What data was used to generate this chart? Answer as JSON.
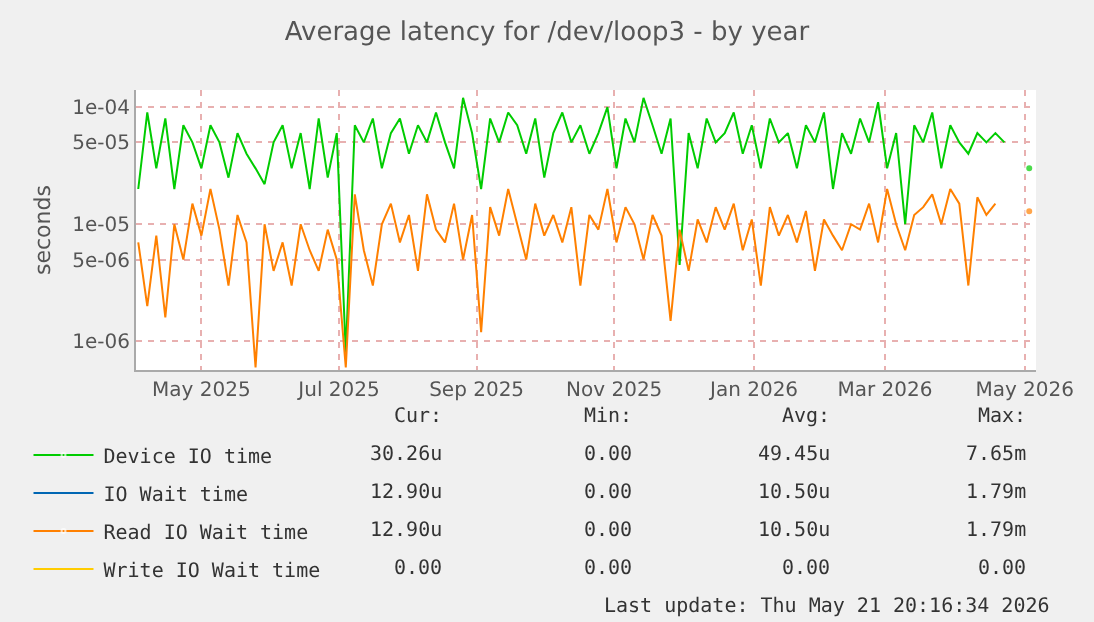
{
  "chart_data": {
    "type": "line",
    "title": "Average latency for /dev/loop3 - by year",
    "ylabel": "seconds",
    "log": true,
    "grid": true,
    "legend": "bottom",
    "marker": "none",
    "line_style": "solid",
    "xlim": [
      "2025-04-17",
      "2026-05-21"
    ],
    "xticks": [
      {
        "value": "2025-05-16",
        "label": "May 2025"
      },
      {
        "value": "2025-07-16",
        "label": "Jul 2025"
      },
      {
        "value": "2025-09-15",
        "label": "Sep 2025"
      },
      {
        "value": "2025-11-15",
        "label": "Nov 2025"
      },
      {
        "value": "2026-01-16",
        "label": "Jan 2026"
      },
      {
        "value": "2026-03-15",
        "label": "Mar 2026"
      },
      {
        "value": "2026-05-16",
        "label": "May 2026"
      }
    ],
    "ylim": [
      5.7e-07,
      0.00014
    ],
    "yticks": [
      {
        "value": 1e-06,
        "label": "1e-06"
      },
      {
        "value": 5e-06,
        "label": "5e-06"
      },
      {
        "value": 1e-05,
        "label": "1e-05"
      },
      {
        "value": 5e-05,
        "label": "5e-05"
      },
      {
        "value": 0.0001,
        "label": "1e-04"
      }
    ],
    "x": [
      "2025-04-18",
      "2025-04-22",
      "2025-04-26",
      "2025-04-30",
      "2025-05-04",
      "2025-05-08",
      "2025-05-12",
      "2025-05-16",
      "2025-05-20",
      "2025-05-24",
      "2025-05-28",
      "2025-06-01",
      "2025-06-05",
      "2025-06-09",
      "2025-06-13",
      "2025-06-17",
      "2025-06-21",
      "2025-06-25",
      "2025-06-29",
      "2025-07-03",
      "2025-07-07",
      "2025-07-11",
      "2025-07-15",
      "2025-07-19",
      "2025-07-23",
      "2025-07-27",
      "2025-07-31",
      "2025-08-04",
      "2025-08-08",
      "2025-08-12",
      "2025-08-16",
      "2025-08-20",
      "2025-08-24",
      "2025-08-28",
      "2025-09-01",
      "2025-09-05",
      "2025-09-09",
      "2025-09-13",
      "2025-09-17",
      "2025-09-21",
      "2025-09-25",
      "2025-09-29",
      "2025-10-03",
      "2025-10-07",
      "2025-10-11",
      "2025-10-15",
      "2025-10-19",
      "2025-10-23",
      "2025-10-27",
      "2025-10-31",
      "2025-11-04",
      "2025-11-08",
      "2025-11-12",
      "2025-11-16",
      "2025-11-20",
      "2025-11-24",
      "2025-11-28",
      "2025-12-02",
      "2025-12-06",
      "2025-12-10",
      "2025-12-14",
      "2025-12-18",
      "2025-12-22",
      "2025-12-26",
      "2025-12-30",
      "2026-01-03",
      "2026-01-07",
      "2026-01-11",
      "2026-01-15",
      "2026-01-19",
      "2026-01-23",
      "2026-01-27",
      "2026-01-31",
      "2026-02-04",
      "2026-02-08",
      "2026-02-12",
      "2026-02-16",
      "2026-02-20",
      "2026-02-24",
      "2026-02-28",
      "2026-03-04",
      "2026-03-08",
      "2026-03-12",
      "2026-03-16",
      "2026-03-20",
      "2026-03-24",
      "2026-03-28",
      "2026-04-01",
      "2026-04-05",
      "2026-04-09",
      "2026-04-13",
      "2026-04-17",
      "2026-04-21",
      "2026-04-25",
      "2026-04-29",
      "2026-05-03",
      "2026-05-07",
      "2026-05-11",
      "2026-05-15",
      "2026-05-17",
      "2026-05-18"
    ],
    "series": [
      {
        "name": "Device IO time",
        "color": "#00cc00",
        "values": [
          2e-05,
          9e-05,
          3e-05,
          8e-05,
          2e-05,
          7e-05,
          5e-05,
          3e-05,
          7e-05,
          5e-05,
          2.5e-05,
          6e-05,
          4e-05,
          3e-05,
          2.2e-05,
          5e-05,
          7e-05,
          3e-05,
          6e-05,
          2e-05,
          8e-05,
          2.5e-05,
          6e-05,
          8e-07,
          7e-05,
          5e-05,
          8e-05,
          3e-05,
          6e-05,
          8e-05,
          4e-05,
          7e-05,
          5e-05,
          9e-05,
          5e-05,
          3e-05,
          0.00012,
          6e-05,
          2e-05,
          8e-05,
          5e-05,
          9e-05,
          7e-05,
          4e-05,
          8e-05,
          2.5e-05,
          6e-05,
          9e-05,
          5e-05,
          7e-05,
          4e-05,
          6e-05,
          0.0001,
          3e-05,
          8e-05,
          5e-05,
          0.00012,
          7e-05,
          4e-05,
          8e-05,
          4.5e-06,
          6e-05,
          3e-05,
          8e-05,
          5e-05,
          6e-05,
          9e-05,
          4e-05,
          7e-05,
          3e-05,
          8e-05,
          5e-05,
          6e-05,
          3e-05,
          7e-05,
          5e-05,
          9e-05,
          2e-05,
          6e-05,
          4e-05,
          8e-05,
          5e-05,
          0.00011,
          3e-05,
          6e-05,
          1e-05,
          7e-05,
          5e-05,
          9e-05,
          3e-05,
          7e-05,
          5e-05,
          4e-05,
          6e-05,
          5e-05,
          6e-05,
          5e-05,
          null,
          null,
          null,
          3e-05
        ]
      },
      {
        "name": "IO Wait time",
        "color": "#0066b3",
        "values": [
          null,
          null,
          null,
          null,
          null,
          null,
          null,
          null,
          null,
          null,
          null,
          null,
          null,
          null,
          null,
          null,
          null,
          null,
          null,
          null,
          null,
          null,
          null,
          null,
          null,
          null,
          null,
          null,
          null,
          null,
          null,
          null,
          null,
          null,
          null,
          null,
          null,
          null,
          null,
          null,
          null,
          null,
          null,
          null,
          null,
          null,
          null,
          null,
          null,
          null,
          null,
          null,
          null,
          null,
          null,
          null,
          null,
          null,
          null,
          null,
          null,
          null,
          null,
          null,
          null,
          null,
          null,
          null,
          null,
          null,
          null,
          null,
          null,
          null,
          null,
          null,
          null,
          null,
          null,
          null,
          null,
          null,
          null,
          null,
          null,
          null,
          null,
          null,
          null,
          null,
          null,
          null,
          null,
          null,
          null,
          null,
          null,
          null,
          null,
          null,
          null
        ]
      },
      {
        "name": "Read IO Wait time",
        "color": "#ff8000",
        "values": [
          7e-06,
          2e-06,
          8e-06,
          1.6e-06,
          1e-05,
          5e-06,
          1.5e-05,
          8e-06,
          2e-05,
          9e-06,
          3e-06,
          1.2e-05,
          7e-06,
          6e-07,
          1e-05,
          4e-06,
          7e-06,
          3e-06,
          1e-05,
          6e-06,
          4e-06,
          9e-06,
          5e-06,
          6e-07,
          1.8e-05,
          6e-06,
          3e-06,
          1e-05,
          1.5e-05,
          7e-06,
          1.2e-05,
          4e-06,
          1.8e-05,
          9e-06,
          7e-06,
          1.5e-05,
          5e-06,
          1.2e-05,
          1.2e-06,
          1.4e-05,
          8e-06,
          2e-05,
          1e-05,
          5e-06,
          1.5e-05,
          8e-06,
          1.2e-05,
          7e-06,
          1.4e-05,
          3e-06,
          1.2e-05,
          9e-06,
          2e-05,
          7e-06,
          1.4e-05,
          1e-05,
          5e-06,
          1.2e-05,
          8e-06,
          1.5e-06,
          9e-06,
          4e-06,
          1.1e-05,
          7e-06,
          1.4e-05,
          9e-06,
          1.5e-05,
          6e-06,
          1.1e-05,
          3e-06,
          1.4e-05,
          8e-06,
          1.2e-05,
          7e-06,
          1.3e-05,
          4e-06,
          1.1e-05,
          8e-06,
          6e-06,
          1e-05,
          9e-06,
          1.5e-05,
          7e-06,
          2e-05,
          1e-05,
          6e-06,
          1.2e-05,
          1.4e-05,
          1.8e-05,
          1e-05,
          2e-05,
          1.5e-05,
          3e-06,
          1.7e-05,
          1.2e-05,
          1.5e-05,
          null,
          null,
          null,
          null,
          1.29e-05
        ]
      },
      {
        "name": "Write IO Wait time",
        "color": "#ffcc00",
        "values": [
          null,
          null,
          null,
          null,
          null,
          null,
          null,
          null,
          null,
          null,
          null,
          null,
          null,
          null,
          null,
          null,
          null,
          null,
          null,
          null,
          null,
          null,
          null,
          null,
          null,
          null,
          null,
          null,
          null,
          null,
          null,
          null,
          null,
          null,
          null,
          null,
          null,
          null,
          null,
          null,
          null,
          null,
          null,
          null,
          null,
          null,
          null,
          null,
          null,
          null,
          null,
          null,
          null,
          null,
          null,
          null,
          null,
          null,
          null,
          null,
          null,
          null,
          null,
          null,
          null,
          null,
          null,
          null,
          null,
          null,
          null,
          null,
          null,
          null,
          null,
          null,
          null,
          null,
          null,
          null,
          null,
          null,
          null,
          null,
          null,
          null,
          null,
          null,
          null,
          null,
          null,
          null,
          null,
          null,
          null,
          null,
          null,
          null,
          null,
          null,
          null
        ]
      }
    ],
    "annotations": [
      "Cur:",
      "Min:",
      "Avg:",
      "Max:",
      "30.26u",
      "0.00",
      "49.45u",
      "7.65m",
      "12.90u",
      "0.00",
      "10.50u",
      "1.79m",
      "12.90u",
      "0.00",
      "10.50u",
      "1.79m",
      "0.00",
      "0.00",
      "0.00",
      "0.00",
      "Last update: Thu May 21 20:16:34 2026"
    ]
  }
}
